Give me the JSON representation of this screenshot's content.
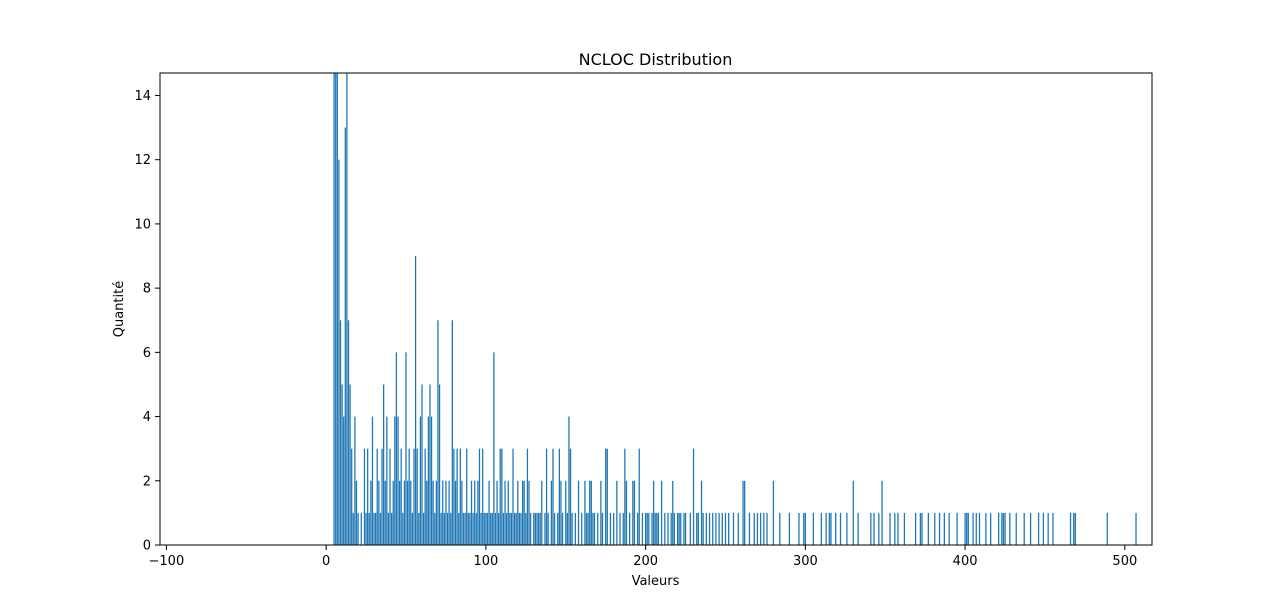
{
  "chart_data": {
    "type": "bar",
    "title": "NCLOC Distribution",
    "xlabel": "Valeurs",
    "ylabel": "Quantité",
    "xlim": [
      -104,
      517
    ],
    "ylim": [
      0,
      14.7
    ],
    "x_ticks": [
      -100,
      0,
      100,
      200,
      300,
      400,
      500
    ],
    "x_tick_labels": [
      "−100",
      "0",
      "100",
      "200",
      "300",
      "400",
      "500"
    ],
    "y_ticks": [
      0,
      2,
      4,
      6,
      8,
      10,
      12,
      14
    ],
    "y_tick_labels": [
      "0",
      "2",
      "4",
      "6",
      "8",
      "10",
      "12",
      "14"
    ],
    "bar_color": "#1f77b4",
    "grid": false,
    "bars": [
      [
        5,
        15
      ],
      [
        6,
        15
      ],
      [
        7,
        15
      ],
      [
        8,
        12
      ],
      [
        9,
        7
      ],
      [
        10,
        5
      ],
      [
        11,
        4
      ],
      [
        12,
        13
      ],
      [
        13,
        15
      ],
      [
        14,
        7
      ],
      [
        15,
        5
      ],
      [
        16,
        3
      ],
      [
        17,
        1
      ],
      [
        18,
        4
      ],
      [
        19,
        2
      ],
      [
        20,
        1
      ],
      [
        22,
        1
      ],
      [
        24,
        3
      ],
      [
        25,
        1
      ],
      [
        26,
        3
      ],
      [
        27,
        1
      ],
      [
        28,
        2
      ],
      [
        29,
        4
      ],
      [
        30,
        1
      ],
      [
        31,
        1
      ],
      [
        32,
        3
      ],
      [
        33,
        2
      ],
      [
        34,
        1
      ],
      [
        35,
        3
      ],
      [
        36,
        5
      ],
      [
        37,
        2
      ],
      [
        38,
        4
      ],
      [
        39,
        1
      ],
      [
        40,
        3
      ],
      [
        41,
        1
      ],
      [
        42,
        2
      ],
      [
        43,
        4
      ],
      [
        44,
        6
      ],
      [
        45,
        4
      ],
      [
        46,
        2
      ],
      [
        47,
        3
      ],
      [
        48,
        1
      ],
      [
        49,
        2
      ],
      [
        50,
        6
      ],
      [
        51,
        2
      ],
      [
        52,
        3
      ],
      [
        53,
        2
      ],
      [
        54,
        1
      ],
      [
        55,
        3
      ],
      [
        56,
        9
      ],
      [
        57,
        3
      ],
      [
        58,
        1
      ],
      [
        59,
        4
      ],
      [
        60,
        5
      ],
      [
        61,
        1
      ],
      [
        62,
        3
      ],
      [
        63,
        2
      ],
      [
        64,
        4
      ],
      [
        65,
        5
      ],
      [
        66,
        4
      ],
      [
        67,
        2
      ],
      [
        68,
        1
      ],
      [
        69,
        2
      ],
      [
        70,
        7
      ],
      [
        71,
        5
      ],
      [
        72,
        1
      ],
      [
        73,
        2
      ],
      [
        74,
        1
      ],
      [
        75,
        2
      ],
      [
        76,
        1
      ],
      [
        77,
        2
      ],
      [
        78,
        1
      ],
      [
        79,
        7
      ],
      [
        80,
        3
      ],
      [
        81,
        2
      ],
      [
        82,
        3
      ],
      [
        83,
        1
      ],
      [
        84,
        3
      ],
      [
        85,
        2
      ],
      [
        86,
        1
      ],
      [
        87,
        1
      ],
      [
        88,
        3
      ],
      [
        89,
        1
      ],
      [
        90,
        1
      ],
      [
        91,
        2
      ],
      [
        92,
        1
      ],
      [
        93,
        2
      ],
      [
        94,
        1
      ],
      [
        95,
        2
      ],
      [
        96,
        3
      ],
      [
        97,
        1
      ],
      [
        98,
        3
      ],
      [
        99,
        1
      ],
      [
        100,
        1
      ],
      [
        101,
        1
      ],
      [
        102,
        2
      ],
      [
        103,
        1
      ],
      [
        104,
        1
      ],
      [
        105,
        6
      ],
      [
        106,
        1
      ],
      [
        107,
        2
      ],
      [
        108,
        1
      ],
      [
        109,
        3
      ],
      [
        110,
        3
      ],
      [
        111,
        1
      ],
      [
        112,
        2
      ],
      [
        113,
        1
      ],
      [
        114,
        2
      ],
      [
        115,
        1
      ],
      [
        116,
        1
      ],
      [
        117,
        3
      ],
      [
        118,
        1
      ],
      [
        119,
        1
      ],
      [
        120,
        2
      ],
      [
        121,
        1
      ],
      [
        122,
        1
      ],
      [
        123,
        2
      ],
      [
        124,
        2
      ],
      [
        125,
        1
      ],
      [
        126,
        3
      ],
      [
        127,
        2
      ],
      [
        128,
        1
      ],
      [
        130,
        1
      ],
      [
        131,
        1
      ],
      [
        132,
        1
      ],
      [
        133,
        1
      ],
      [
        134,
        1
      ],
      [
        135,
        2
      ],
      [
        137,
        1
      ],
      [
        138,
        3
      ],
      [
        139,
        1
      ],
      [
        141,
        2
      ],
      [
        142,
        3
      ],
      [
        143,
        1
      ],
      [
        145,
        1
      ],
      [
        146,
        3
      ],
      [
        147,
        2
      ],
      [
        148,
        1
      ],
      [
        150,
        2
      ],
      [
        151,
        1
      ],
      [
        152,
        4
      ],
      [
        153,
        3
      ],
      [
        154,
        1
      ],
      [
        156,
        1
      ],
      [
        158,
        2
      ],
      [
        160,
        1
      ],
      [
        162,
        2
      ],
      [
        163,
        1
      ],
      [
        164,
        1
      ],
      [
        165,
        2
      ],
      [
        166,
        2
      ],
      [
        167,
        1
      ],
      [
        168,
        1
      ],
      [
        170,
        1
      ],
      [
        172,
        2
      ],
      [
        173,
        1
      ],
      [
        175,
        3
      ],
      [
        176,
        3
      ],
      [
        178,
        1
      ],
      [
        180,
        1
      ],
      [
        182,
        2
      ],
      [
        184,
        1
      ],
      [
        186,
        1
      ],
      [
        187,
        3
      ],
      [
        188,
        2
      ],
      [
        190,
        1
      ],
      [
        192,
        2
      ],
      [
        193,
        2
      ],
      [
        195,
        1
      ],
      [
        196,
        3
      ],
      [
        198,
        1
      ],
      [
        200,
        1
      ],
      [
        201,
        1
      ],
      [
        202,
        1
      ],
      [
        204,
        1
      ],
      [
        205,
        2
      ],
      [
        206,
        1
      ],
      [
        207,
        1
      ],
      [
        208,
        1
      ],
      [
        210,
        2
      ],
      [
        212,
        1
      ],
      [
        214,
        1
      ],
      [
        216,
        1
      ],
      [
        217,
        2
      ],
      [
        218,
        1
      ],
      [
        220,
        1
      ],
      [
        221,
        1
      ],
      [
        222,
        1
      ],
      [
        224,
        1
      ],
      [
        225,
        1
      ],
      [
        228,
        1
      ],
      [
        230,
        3
      ],
      [
        232,
        1
      ],
      [
        233,
        1
      ],
      [
        235,
        2
      ],
      [
        236,
        1
      ],
      [
        238,
        1
      ],
      [
        240,
        1
      ],
      [
        242,
        1
      ],
      [
        244,
        1
      ],
      [
        246,
        1
      ],
      [
        248,
        1
      ],
      [
        250,
        1
      ],
      [
        252,
        1
      ],
      [
        255,
        1
      ],
      [
        258,
        1
      ],
      [
        261,
        2
      ],
      [
        262,
        2
      ],
      [
        265,
        1
      ],
      [
        268,
        1
      ],
      [
        270,
        1
      ],
      [
        272,
        1
      ],
      [
        274,
        1
      ],
      [
        276,
        1
      ],
      [
        280,
        2
      ],
      [
        284,
        1
      ],
      [
        290,
        1
      ],
      [
        296,
        1
      ],
      [
        299,
        1
      ],
      [
        300,
        1
      ],
      [
        305,
        1
      ],
      [
        310,
        1
      ],
      [
        313,
        1
      ],
      [
        315,
        1
      ],
      [
        316,
        1
      ],
      [
        319,
        1
      ],
      [
        322,
        1
      ],
      [
        326,
        1
      ],
      [
        330,
        2
      ],
      [
        333,
        1
      ],
      [
        341,
        1
      ],
      [
        343,
        1
      ],
      [
        346,
        1
      ],
      [
        348,
        2
      ],
      [
        353,
        1
      ],
      [
        356,
        1
      ],
      [
        358,
        1
      ],
      [
        362,
        1
      ],
      [
        369,
        1
      ],
      [
        372,
        1
      ],
      [
        373,
        1
      ],
      [
        377,
        1
      ],
      [
        381,
        1
      ],
      [
        384,
        1
      ],
      [
        387,
        1
      ],
      [
        390,
        1
      ],
      [
        395,
        1
      ],
      [
        400,
        1
      ],
      [
        401,
        1
      ],
      [
        402,
        1
      ],
      [
        405,
        1
      ],
      [
        407,
        1
      ],
      [
        409,
        1
      ],
      [
        413,
        1
      ],
      [
        416,
        1
      ],
      [
        421,
        1
      ],
      [
        423,
        1
      ],
      [
        424,
        1
      ],
      [
        425,
        1
      ],
      [
        428,
        1
      ],
      [
        432,
        1
      ],
      [
        437,
        1
      ],
      [
        441,
        1
      ],
      [
        446,
        1
      ],
      [
        449,
        1
      ],
      [
        452,
        1
      ],
      [
        455,
        1
      ],
      [
        466,
        1
      ],
      [
        468,
        1
      ],
      [
        469,
        1
      ],
      [
        489,
        1
      ],
      [
        507,
        1
      ]
    ]
  }
}
